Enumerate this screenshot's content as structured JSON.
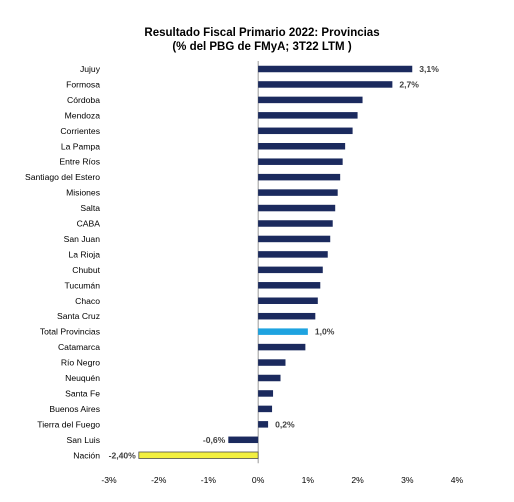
{
  "chart_data": {
    "type": "bar",
    "orientation": "horizontal",
    "title": "Resultado Fiscal Primario 2022: Provincias",
    "subtitle": "(% del PBG de FMyA; 3T22 LTM )",
    "xlabel": "",
    "ylabel": "",
    "xlim": [
      -3,
      4
    ],
    "x_ticks": [
      -3,
      -2,
      -1,
      0,
      1,
      2,
      3,
      4
    ],
    "x_tick_labels": [
      "-3%",
      "-2%",
      "-1%",
      "0%",
      "1%",
      "2%",
      "3%",
      "4%"
    ],
    "grid": false,
    "legend": "none",
    "colors": {
      "default": "#1b2a5e",
      "total": "#1ea3e0",
      "nacion": "#f2ef3f",
      "nacion_border": "#4d4d4d"
    },
    "categories": [
      "Jujuy",
      "Formosa",
      "Córdoba",
      "Mendoza",
      "Corrientes",
      "La Pampa",
      "Entre Ríos",
      "Santiago del Estero",
      "Misiones",
      "Salta",
      "CABA",
      "San Juan",
      "La Rioja",
      "Chubut",
      "Tucumán",
      "Chaco",
      "Santa Cruz",
      "Total Provincias",
      "Catamarca",
      "Río Negro",
      "Neuquén",
      "Santa Fe",
      "Buenos Aires",
      "Tierra del Fuego",
      "San Luis",
      "Nación"
    ],
    "values": [
      3.1,
      2.7,
      2.1,
      2.0,
      1.9,
      1.75,
      1.7,
      1.65,
      1.6,
      1.55,
      1.5,
      1.45,
      1.4,
      1.3,
      1.25,
      1.2,
      1.15,
      1.0,
      0.95,
      0.55,
      0.45,
      0.3,
      0.28,
      0.2,
      -0.6,
      -2.4
    ],
    "highlight": {
      "Total Provincias": "total",
      "Nación": "nacion"
    },
    "data_labels": [
      {
        "category": "Jujuy",
        "text": "3,1%"
      },
      {
        "category": "Formosa",
        "text": "2,7%"
      },
      {
        "category": "Total Provincias",
        "text": "1,0%"
      },
      {
        "category": "Tierra del Fuego",
        "text": "0,2%"
      },
      {
        "category": "San Luis",
        "text": "-0,6%"
      },
      {
        "category": "Nación",
        "text": "-2,40%"
      }
    ]
  }
}
